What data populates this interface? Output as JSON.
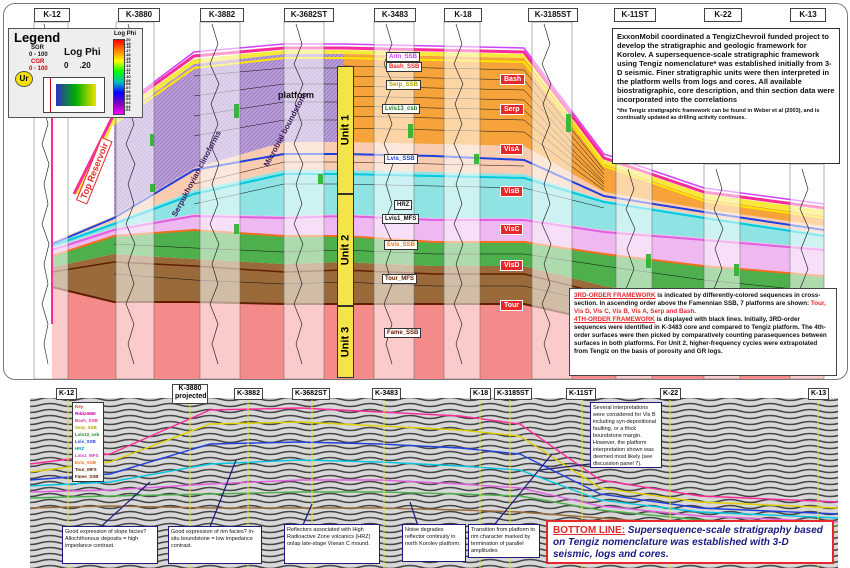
{
  "upper": {
    "wells": [
      "K-12",
      "K-3880",
      "K-3882",
      "K-3682ST",
      "K-3483",
      "K-18",
      "K-3185ST",
      "K-11ST",
      "K-22",
      "K-13"
    ],
    "legend": {
      "title": "Legend",
      "sgr": "SGR",
      "sgr_range": "0 - 100",
      "cgr": "CGR",
      "cgr_range": "0 - 100",
      "ur": "Ur",
      "log_phi": "Log Phi",
      "phi_range": "0     .20",
      "scale_title": "Log Phi",
      "scale_ticks": [
        ".20",
        ".19",
        ".18",
        ".17",
        ".16",
        ".15",
        ".14",
        ".13",
        ".12",
        ".11",
        ".10",
        ".09",
        ".08",
        ".07",
        ".06",
        ".05",
        ".04",
        ".03",
        ".02",
        ".01"
      ]
    },
    "unit_labels": [
      "Unit 1",
      "Unit 2",
      "Unit 3"
    ],
    "slant_labels": [
      "Top Reservoir",
      "Serpukhovian clinoforms",
      "platform",
      "Microbial boundstone"
    ],
    "red_tags": [
      "Bash",
      "Serp",
      "VisA",
      "VisB",
      "VisC",
      "VisD",
      "Tour"
    ],
    "surface_tags": [
      "Artn_SSB",
      "Bash_SSB",
      "Serp_SSB",
      "Lvis13_csb",
      "Lvis_SSB",
      "HRZ",
      "Lvis1_MFS",
      "Evis_SSB",
      "Tour_MFS",
      "Fame_SSB"
    ],
    "info": {
      "text": "ExxonMobil coordinated a TengizChevroil funded project to develop the stratigraphic and geologic framework for Korolev. A supersequence-scale stratigraphic framework using Tengiz nomenclature* was established initially from 3-D seismic. Finer stratigraphic units were then interpreted in the platform wells from logs and cores. All available biostratigraphic, core description, and thin section data were incorporated into the correlations",
      "footnote": "*the Tengiz stratigraphic framework can be found in Weber et al (2003), and is continually updated as drilling activity continues."
    },
    "framework": {
      "h1": "3RD-ORDER FRAMEWORK",
      "t1": " is indicated by differently-colored sequences in cross-section. In ascending order above the Famennian SSB, 7 platforms are shown: ",
      "t1_red": "Tour, Vis D, Vis C, Vis B, Vis A, Serp and Bash.",
      "h2": "4TH-ORDER FRAMEWORK",
      "t2": " is displayed with black lines. Initially, 3RD-order sequences were identified in K-3483 core and compared to Tengiz platform. The 4th-order surfaces were then picked by comparatively counting parasequences between surfaces in both platforms. For Unit 2, higher-frequency cycles were extrapolated from Tengiz on the basis of porosity and GR logs."
    }
  },
  "lower": {
    "wells": [
      "K-12",
      "K-3880 projected",
      "K-3882",
      "K-3682ST",
      "K-3483",
      "K-18",
      "K-3185ST",
      "K-11ST",
      "K-22",
      "K-13"
    ],
    "key": {
      "title": "Key Horizons",
      "items": [
        "Artn_SSB",
        "Bash_SSB",
        "Serp_SSB",
        "Lvis13_csb",
        "Lvis_SSB",
        "HRZ",
        "Lvis1_MFS",
        "Evis_SSB",
        "Tour_MFS",
        "Fame_SSB"
      ]
    },
    "captions": [
      "Good expression of slope facies? Allochthonous deposits = high impedance contrast.",
      "Good expression of rim facies? In-situ boundstone = low impedance contrast.",
      "Reflectors associated with High Radioactive Zone volcanics (HRZ) onlap late-stage Visean C mound.",
      "Noise degrades reflector continuity in north Korolev platform.",
      "Transition from platform to rim character marked by termination of parallel amplitudes",
      "Several interpretations were considered for Vis B including syn-depositional faulting, or a thick boundstone margin. However, the platform interpretation shown was deemed most likely (see discussion panel 7)."
    ],
    "bottom_label": "BOTTOM LINE:",
    "bottom_text": " Supersequence-scale stratigraphy based on Tengiz nomenclature was established with 3-D seismic, logs and cores."
  },
  "colors": {
    "bash": "#ff2a9a",
    "serp": "#f7e93a",
    "visA": "#b79ad8",
    "visB": "#8fe3e3",
    "visC": "#f0b8f0",
    "visD": "#4db04d",
    "tour": "#9a6a3a",
    "fame": "#f58a8a",
    "accent_red": "#e5282a",
    "unit_bg": "#f3e44a"
  }
}
